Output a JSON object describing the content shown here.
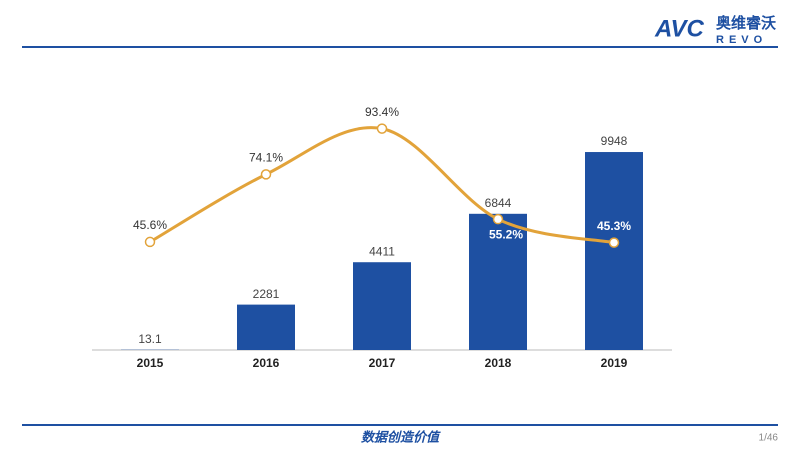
{
  "header": {
    "logo_mark": "AVC",
    "logo_cn": "奥维睿沃",
    "logo_en": "REVO"
  },
  "chart_data": {
    "type": "combo",
    "categories": [
      "2015",
      "2016",
      "2017",
      "2018",
      "2019"
    ],
    "ylim": [
      0,
      10000
    ],
    "y2lim": [
      0,
      100
    ],
    "series": [
      {
        "type": "bar",
        "color": "#1e50a2",
        "values": [
          13.1,
          2281,
          4411,
          6844,
          9948
        ]
      },
      {
        "type": "line",
        "axis": "y2",
        "color": "#e2a33a",
        "values": [
          45.6,
          74.1,
          93.4,
          55.2,
          45.3
        ],
        "value_labels": [
          "45.6%",
          "74.1%",
          "93.4%",
          "55.2%",
          "45.3%"
        ]
      }
    ]
  },
  "footer": {
    "slogan": "数据创造价值",
    "page": "1/46"
  }
}
